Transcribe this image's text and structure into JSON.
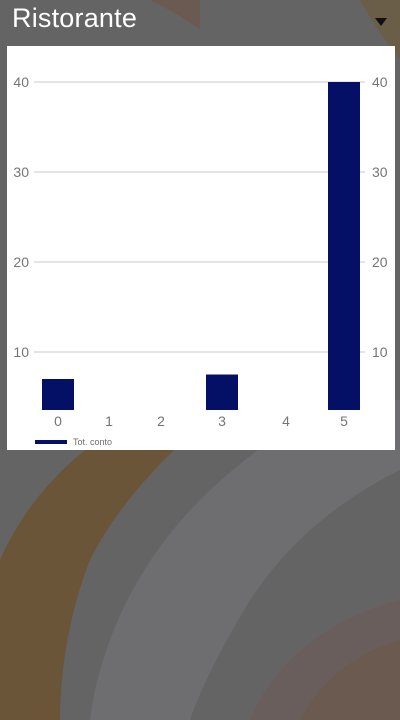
{
  "header": {
    "title": "Ristorante",
    "dropdown_icon": "dropdown-arrow-icon"
  },
  "colors": {
    "bar": "#031066",
    "grid": "#c8c8c8",
    "tick_text": "#757575",
    "card_bg": "#ffffff",
    "overlay": "#646464"
  },
  "chart_data": {
    "type": "bar",
    "categories": [
      "0",
      "1",
      "2",
      "3",
      "4",
      "5"
    ],
    "series": [
      {
        "name": "Tot. conto",
        "values": [
          7,
          0,
          0,
          7.5,
          0,
          40
        ]
      }
    ],
    "ylim": [
      4,
      44
    ],
    "yticks": [
      10,
      20,
      30,
      40
    ],
    "left_axis_labels": [
      "10",
      "20",
      "30",
      "40"
    ],
    "right_axis_labels": [
      "10",
      "20",
      "30",
      "40"
    ],
    "grid": true,
    "legend_position": "bottom-left"
  },
  "legend": {
    "label": "Tot. conto"
  }
}
